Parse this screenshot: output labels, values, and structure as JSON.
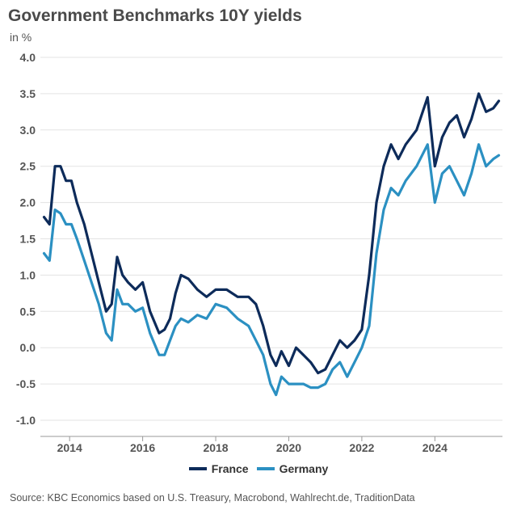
{
  "chart_data": {
    "type": "line",
    "title": "Government Benchmarks 10Y yields",
    "ylabel": "in %",
    "xlabel": "",
    "ylim": [
      -1.0,
      4.0
    ],
    "xlim": [
      2013.2,
      2025.85
    ],
    "yticks": [
      "4.0",
      "3.5",
      "3.0",
      "2.5",
      "2.0",
      "1.5",
      "1.0",
      "0.5",
      "0.0",
      "-0.5",
      "-1.0"
    ],
    "xticks": [
      "2014",
      "2016",
      "2018",
      "2020",
      "2022",
      "2024"
    ],
    "grid": true,
    "legend_position": "bottom",
    "series": [
      {
        "name": "France",
        "color": "#0d2b5a",
        "x": [
          2013.3,
          2013.45,
          2013.6,
          2013.75,
          2013.9,
          2014.05,
          2014.2,
          2014.4,
          2014.6,
          2014.8,
          2015.0,
          2015.15,
          2015.3,
          2015.45,
          2015.6,
          2015.8,
          2016.0,
          2016.2,
          2016.45,
          2016.6,
          2016.75,
          2016.9,
          2017.05,
          2017.25,
          2017.5,
          2017.75,
          2018.0,
          2018.3,
          2018.6,
          2018.9,
          2019.1,
          2019.3,
          2019.5,
          2019.65,
          2019.8,
          2020.0,
          2020.2,
          2020.4,
          2020.6,
          2020.8,
          2021.0,
          2021.2,
          2021.4,
          2021.6,
          2021.8,
          2022.0,
          2022.2,
          2022.4,
          2022.6,
          2022.8,
          2023.0,
          2023.2,
          2023.5,
          2023.8,
          2024.0,
          2024.2,
          2024.4,
          2024.6,
          2024.8,
          2025.0,
          2025.2,
          2025.4,
          2025.6,
          2025.75
        ],
        "values": [
          1.8,
          1.7,
          2.5,
          2.5,
          2.3,
          2.3,
          2.0,
          1.7,
          1.3,
          0.9,
          0.5,
          0.6,
          1.25,
          1.0,
          0.9,
          0.8,
          0.9,
          0.5,
          0.2,
          0.25,
          0.4,
          0.75,
          1.0,
          0.95,
          0.8,
          0.7,
          0.8,
          0.8,
          0.7,
          0.7,
          0.6,
          0.3,
          -0.1,
          -0.25,
          -0.05,
          -0.25,
          0.0,
          -0.1,
          -0.2,
          -0.35,
          -0.3,
          -0.1,
          0.1,
          0.0,
          0.1,
          0.25,
          1.0,
          2.0,
          2.5,
          2.8,
          2.6,
          2.8,
          3.0,
          3.45,
          2.5,
          2.9,
          3.1,
          3.2,
          2.9,
          3.15,
          3.5,
          3.25,
          3.3,
          3.4
        ]
      },
      {
        "name": "Germany",
        "color": "#2b90c2",
        "x": [
          2013.3,
          2013.45,
          2013.6,
          2013.75,
          2013.9,
          2014.05,
          2014.2,
          2014.4,
          2014.6,
          2014.8,
          2015.0,
          2015.15,
          2015.3,
          2015.45,
          2015.6,
          2015.8,
          2016.0,
          2016.2,
          2016.45,
          2016.6,
          2016.75,
          2016.9,
          2017.05,
          2017.25,
          2017.5,
          2017.75,
          2018.0,
          2018.3,
          2018.6,
          2018.9,
          2019.1,
          2019.3,
          2019.5,
          2019.65,
          2019.8,
          2020.0,
          2020.2,
          2020.4,
          2020.6,
          2020.8,
          2021.0,
          2021.2,
          2021.4,
          2021.6,
          2021.8,
          2022.0,
          2022.2,
          2022.4,
          2022.6,
          2022.8,
          2023.0,
          2023.2,
          2023.5,
          2023.8,
          2024.0,
          2024.2,
          2024.4,
          2024.6,
          2024.8,
          2025.0,
          2025.2,
          2025.4,
          2025.6,
          2025.75
        ],
        "values": [
          1.3,
          1.2,
          1.9,
          1.85,
          1.7,
          1.7,
          1.5,
          1.2,
          0.9,
          0.6,
          0.2,
          0.1,
          0.8,
          0.6,
          0.6,
          0.5,
          0.55,
          0.2,
          -0.1,
          -0.1,
          0.1,
          0.3,
          0.4,
          0.35,
          0.45,
          0.4,
          0.6,
          0.55,
          0.4,
          0.3,
          0.1,
          -0.1,
          -0.5,
          -0.65,
          -0.4,
          -0.5,
          -0.5,
          -0.5,
          -0.55,
          -0.55,
          -0.5,
          -0.3,
          -0.2,
          -0.4,
          -0.2,
          0.0,
          0.3,
          1.3,
          1.9,
          2.2,
          2.1,
          2.3,
          2.5,
          2.8,
          2.0,
          2.4,
          2.5,
          2.3,
          2.1,
          2.4,
          2.8,
          2.5,
          2.6,
          2.65
        ]
      }
    ],
    "source": "Source: KBC Economics based on U.S. Treasury, Macrobond, Wahlrecht.de, TraditionData"
  }
}
